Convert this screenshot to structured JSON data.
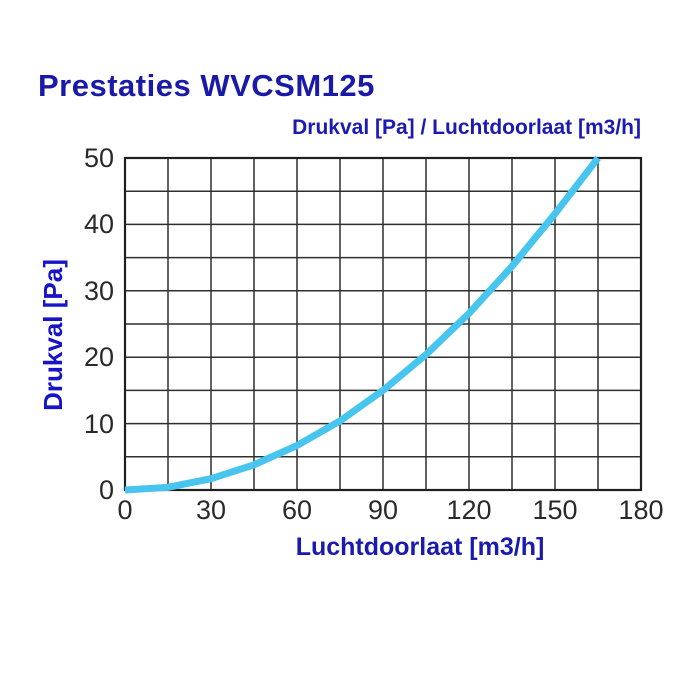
{
  "title": "Prestaties WVCSM125",
  "chart_data": {
    "type": "line",
    "title": "Drukval [Pa] / Luchtdoorlaat [m3/h]",
    "xlabel": "Luchtdoorlaat [m3/h]",
    "ylabel": "Drukval [Pa]",
    "xlim": [
      0,
      180
    ],
    "ylim": [
      0,
      50
    ],
    "x_ticks": [
      0,
      30,
      60,
      90,
      120,
      150,
      180
    ],
    "y_ticks": [
      0,
      10,
      20,
      30,
      40,
      50
    ],
    "x_grid_step": 15,
    "y_grid_step": 5,
    "grid": true,
    "legend": "none",
    "series": [
      {
        "name": "pressure-drop-curve",
        "color": "#47c5ee",
        "stroke_width": 7,
        "x": [
          0,
          15,
          30,
          45,
          60,
          75,
          90,
          105,
          120,
          135,
          150,
          165
        ],
        "y": [
          0,
          0.4,
          1.7,
          3.8,
          6.7,
          10.4,
          15,
          20.4,
          26.6,
          33.7,
          41.6,
          50
        ]
      }
    ]
  },
  "colors": {
    "title_blue": "#1b1aa8",
    "subtitle_blue": "#1b1ab4",
    "axis_label_blue": "#1713c6",
    "curve_blue": "#47c5ee",
    "grid_line": "#2f2f2f",
    "plot_border": "#1f1f1f",
    "tick_text": "#2a2a2a",
    "background": "#ffffff"
  }
}
